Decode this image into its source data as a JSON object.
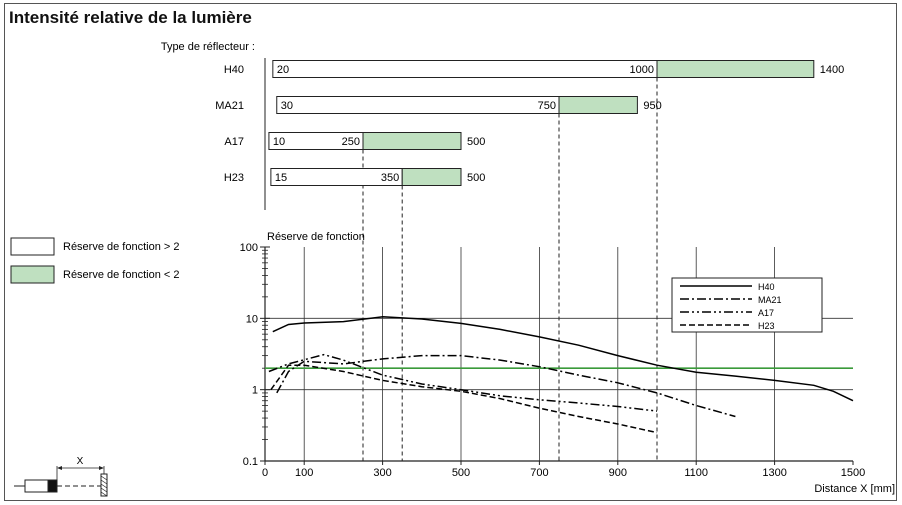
{
  "title": "Intensité relative de la lumière",
  "colors": {
    "green_fill": "#bfe0c0",
    "green_line": "#3a9a3a",
    "axis": "#222222",
    "grid": "#333333"
  },
  "chart_data": [
    {
      "type": "bar",
      "subtitle": "Type de réflecteur :",
      "orientation": "horizontal",
      "units": "mm",
      "categories": [
        "H40",
        "MA21",
        "A17",
        "H23"
      ],
      "rows": [
        {
          "name": "H40",
          "start": 20,
          "mid": 1000,
          "end": 1400,
          "labels": [
            "20",
            "1000",
            "1400"
          ]
        },
        {
          "name": "MA21",
          "start": 30,
          "mid": 750,
          "end": 950,
          "labels": [
            "30",
            "750",
            "950"
          ]
        },
        {
          "name": "A17",
          "start": 10,
          "mid": 250,
          "end": 500,
          "labels": [
            "10",
            "250",
            "500"
          ]
        },
        {
          "name": "H23",
          "start": 15,
          "mid": 350,
          "end": 500,
          "labels": [
            "15",
            "350",
            "500"
          ]
        }
      ],
      "legend": [
        {
          "label": "Réserve de fonction > 2",
          "fill": "white"
        },
        {
          "label": "Réserve de fonction < 2",
          "fill": "green"
        }
      ]
    },
    {
      "type": "line",
      "ylabel": "Réserve de fonction",
      "xlabel": "Distance X [mm]",
      "yscale": "log",
      "ylim": [
        0.1,
        100
      ],
      "xlim": [
        0,
        1500
      ],
      "xticks": [
        0,
        100,
        300,
        500,
        700,
        900,
        1100,
        1300,
        1500
      ],
      "yticks": [
        0.1,
        1,
        10,
        100
      ],
      "ytick_labels": [
        "0.1",
        "1",
        "10",
        "100"
      ],
      "threshold": 2,
      "legend_position": "top-right",
      "series": [
        {
          "name": "H40",
          "style": "solid",
          "x": [
            20,
            60,
            100,
            200,
            300,
            400,
            500,
            600,
            700,
            800,
            900,
            1000,
            1100,
            1200,
            1300,
            1400,
            1450,
            1500
          ],
          "y": [
            6.5,
            8.2,
            8.6,
            9.0,
            10.5,
            9.8,
            8.5,
            7.0,
            5.5,
            4.2,
            3.0,
            2.2,
            1.75,
            1.55,
            1.35,
            1.15,
            0.95,
            0.7
          ]
        },
        {
          "name": "MA21",
          "style": "dashdot",
          "x": [
            30,
            60,
            100,
            200,
            300,
            400,
            500,
            600,
            700,
            800,
            900,
            1000,
            1100,
            1200
          ],
          "y": [
            0.9,
            1.8,
            2.5,
            2.3,
            2.7,
            3.0,
            3.0,
            2.6,
            2.1,
            1.6,
            1.25,
            0.9,
            0.6,
            0.42
          ]
        },
        {
          "name": "A17",
          "style": "dashdotdot",
          "x": [
            10,
            60,
            150,
            200,
            300,
            400,
            500,
            600,
            700,
            800,
            900,
            1000
          ],
          "y": [
            1.8,
            2.3,
            3.1,
            2.6,
            1.6,
            1.2,
            1.0,
            0.82,
            0.72,
            0.65,
            0.58,
            0.5
          ]
        },
        {
          "name": "H23",
          "style": "dashed",
          "x": [
            15,
            60,
            100,
            200,
            300,
            400,
            500,
            600,
            700,
            800,
            900,
            1000
          ],
          "y": [
            1.0,
            2.2,
            2.2,
            1.8,
            1.35,
            1.1,
            0.95,
            0.75,
            0.55,
            0.42,
            0.33,
            0.25
          ]
        }
      ]
    }
  ],
  "diagram": {
    "x_label": "X"
  }
}
